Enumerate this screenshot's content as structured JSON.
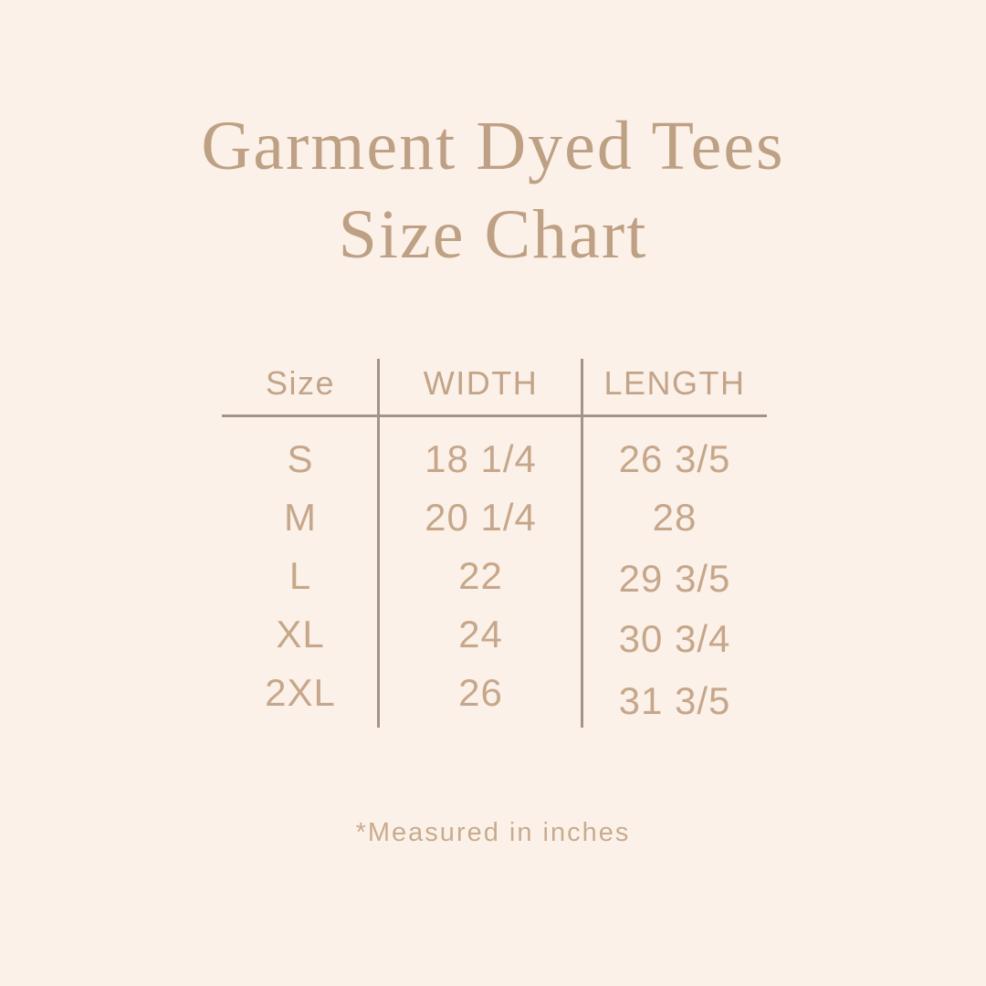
{
  "page": {
    "background_color": "#fcf1e8",
    "title_color": "#bea184",
    "table_text_color": "#c6a78b",
    "rule_color": "#a59486"
  },
  "title": {
    "line1": "Garment Dyed Tees",
    "line2": "Size Chart"
  },
  "size_chart": {
    "columns": [
      "Size",
      "WIDTH",
      "LENGTH"
    ],
    "rows": [
      {
        "size": "S",
        "width": "18 1/4",
        "length": "26 3/5"
      },
      {
        "size": "M",
        "width": "20 1/4",
        "length": "28"
      },
      {
        "size": "L",
        "width": "22",
        "length": "29 3/5"
      },
      {
        "size": "XL",
        "width": "24",
        "length": "30 3/4"
      },
      {
        "size": "2XL",
        "width": "26",
        "length": "31 3/5"
      }
    ]
  },
  "footnote": "*Measured in inches",
  "chart_data": {
    "type": "table",
    "title": "Garment Dyed Tees Size Chart",
    "columns": [
      "Size",
      "WIDTH",
      "LENGTH"
    ],
    "rows": [
      [
        "S",
        "18 1/4",
        "26 3/5"
      ],
      [
        "M",
        "20 1/4",
        "28"
      ],
      [
        "L",
        "22",
        "29 3/5"
      ],
      [
        "XL",
        "24",
        "30 3/4"
      ],
      [
        "2XL",
        "26",
        "31 3/5"
      ]
    ],
    "units": "inches",
    "note": "*Measured in inches"
  }
}
